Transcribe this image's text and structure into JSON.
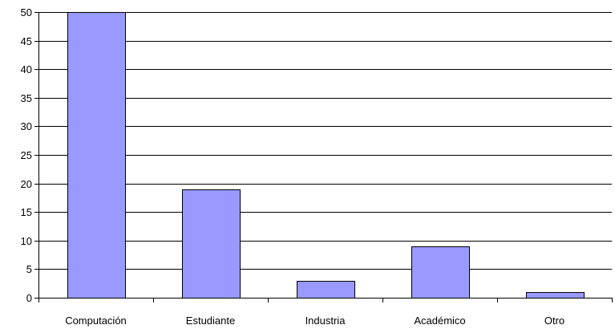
{
  "chart_data": {
    "type": "bar",
    "categories": [
      "Computación",
      "Estudiante",
      "Industria",
      "Académico",
      "Otro"
    ],
    "values": [
      50,
      19,
      3,
      9,
      1
    ],
    "title": "",
    "xlabel": "",
    "ylabel": "",
    "ylim": [
      0,
      50
    ],
    "yticks": [
      "0",
      "5",
      "10",
      "15",
      "20",
      "25",
      "30",
      "35",
      "40",
      "45",
      "50"
    ],
    "grid": true,
    "legend": false,
    "colors": {
      "bar_fill": "#9999ff",
      "bar_stroke": "#000000",
      "grid": "#000000",
      "axis": "#000000"
    }
  }
}
